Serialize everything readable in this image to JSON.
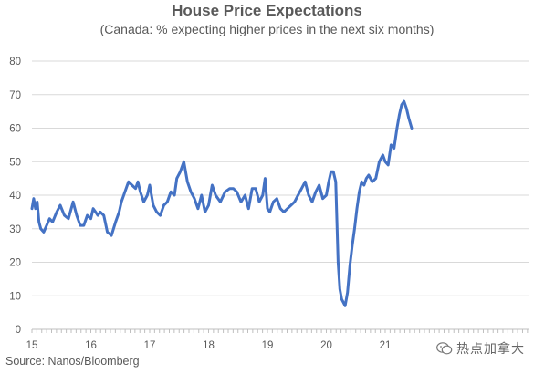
{
  "chart_data": {
    "type": "line",
    "title": "House Price Expectations",
    "subtitle": "(Canada: % expecting higher prices in the next six months)",
    "source": "Source: Nanos/Bloomberg",
    "watermark": "热点加拿大",
    "xlabel": "",
    "ylabel": "",
    "xlim": [
      2015.0,
      2023.45
    ],
    "ylim": [
      0,
      80
    ],
    "yticks": [
      0,
      10,
      20,
      30,
      40,
      50,
      60,
      70,
      80
    ],
    "xticks": [
      {
        "label": "15",
        "value": 2015
      },
      {
        "label": "16",
        "value": 2016
      },
      {
        "label": "17",
        "value": 2017
      },
      {
        "label": "18",
        "value": 2018
      },
      {
        "label": "19",
        "value": 2019
      },
      {
        "label": "20",
        "value": 2020
      },
      {
        "label": "21",
        "value": 2021
      }
    ],
    "grid": true,
    "line_color": "#4472c4",
    "series": [
      {
        "x": [
          2015.0,
          2015.03,
          2015.06,
          2015.09,
          2015.12,
          2015.15,
          2015.2,
          2015.25,
          2015.3,
          2015.35,
          2015.42,
          2015.48,
          2015.55,
          2015.62,
          2015.7,
          2015.76,
          2015.82,
          2015.88,
          2015.94,
          2016.0,
          2016.04,
          2016.08,
          2016.12,
          2016.16,
          2016.22,
          2016.28,
          2016.35,
          2016.42,
          2016.48,
          2016.52,
          2016.58,
          2016.64,
          2016.7,
          2016.76,
          2016.8,
          2016.84,
          2016.9,
          2016.96,
          2017.0,
          2017.06,
          2017.12,
          2017.18,
          2017.24,
          2017.3,
          2017.36,
          2017.42,
          2017.46,
          2017.52,
          2017.58,
          2017.64,
          2017.7,
          2017.76,
          2017.82,
          2017.88,
          2017.94,
          2018.0,
          2018.06,
          2018.12,
          2018.2,
          2018.28,
          2018.36,
          2018.42,
          2018.48,
          2018.55,
          2018.62,
          2018.68,
          2018.74,
          2018.8,
          2018.86,
          2018.92,
          2018.96,
          2019.0,
          2019.04,
          2019.1,
          2019.16,
          2019.22,
          2019.28,
          2019.34,
          2019.4,
          2019.46,
          2019.52,
          2019.58,
          2019.64,
          2019.7,
          2019.76,
          2019.82,
          2019.88,
          2019.94,
          2020.0,
          2020.04,
          2020.08,
          2020.12,
          2020.16,
          2020.2,
          2020.23,
          2020.26,
          2020.29,
          2020.32,
          2020.36,
          2020.4,
          2020.44,
          2020.48,
          2020.52,
          2020.56,
          2020.6,
          2020.64,
          2020.68,
          2020.72,
          2020.78,
          2020.84,
          2020.9,
          2020.96,
          2021.0,
          2021.05,
          2021.1,
          2021.15,
          2021.2,
          2021.24,
          2021.28,
          2021.32,
          2021.36,
          2021.4,
          2021.45
        ],
        "y": [
          36,
          39,
          36,
          38,
          32,
          30,
          29,
          31,
          33,
          32,
          35,
          37,
          34,
          33,
          38,
          34,
          31,
          31,
          34,
          33,
          36,
          35,
          34,
          35,
          34,
          29,
          28,
          32,
          35,
          38,
          41,
          44,
          43,
          42,
          44,
          41,
          38,
          40,
          43,
          37,
          35,
          34,
          37,
          38,
          41,
          40,
          45,
          47,
          50,
          44,
          41,
          39,
          36,
          40,
          35,
          37,
          43,
          40,
          38,
          41,
          42,
          42,
          41,
          38,
          40,
          36,
          42,
          42,
          38,
          40,
          45,
          36,
          35,
          38,
          39,
          36,
          35,
          36,
          37,
          38,
          40,
          42,
          44,
          40,
          38,
          41,
          43,
          39,
          40,
          44,
          47,
          47,
          44,
          20,
          12,
          9,
          8,
          7,
          11,
          19,
          25,
          30,
          36,
          41,
          44,
          43,
          45,
          46,
          44,
          45,
          50,
          52,
          50,
          49,
          55,
          54,
          60,
          64,
          67,
          68,
          66,
          63,
          60
        ]
      }
    ]
  }
}
